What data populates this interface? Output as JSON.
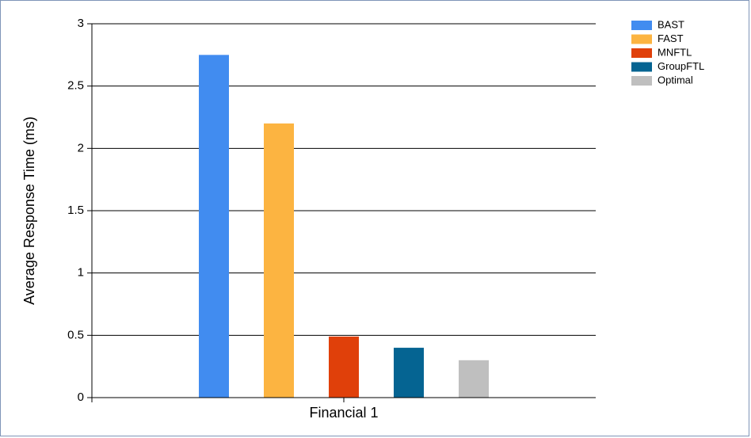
{
  "chart_data": {
    "type": "bar",
    "title": "",
    "xlabel": "",
    "ylabel": "Average Response Time (ms)",
    "categories": [
      "Financial 1"
    ],
    "ylim": [
      0,
      3
    ],
    "yticks": [
      "0",
      "0.5",
      "1",
      "1.5",
      "2",
      "2.5",
      "3"
    ],
    "grid": true,
    "legend_position": "top-right",
    "series": [
      {
        "name": "BAST",
        "color": "#418cf0",
        "values": [
          2.75
        ]
      },
      {
        "name": "FAST",
        "color": "#fcb441",
        "values": [
          2.2
        ]
      },
      {
        "name": "MNFTL",
        "color": "#e0400a",
        "values": [
          0.49
        ]
      },
      {
        "name": "GroupFTL",
        "color": "#056492",
        "values": [
          0.4
        ]
      },
      {
        "name": "Optimal",
        "color": "#bfbfbf",
        "values": [
          0.3
        ]
      }
    ]
  }
}
